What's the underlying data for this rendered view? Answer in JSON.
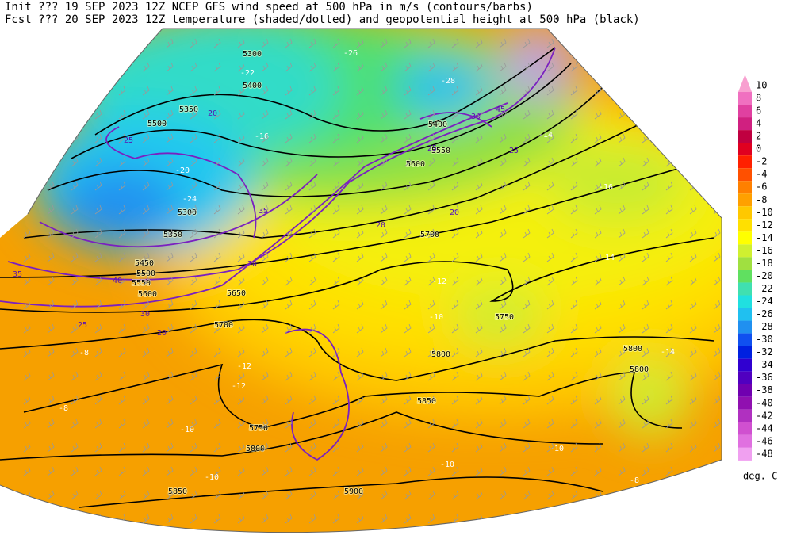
{
  "header": {
    "line1": "Init  ??? 19 SEP 2023 12Z  NCEP GFS wind speed at 500 hPa in m/s (contours/barbs)",
    "line2": "Fcst ??? 20 SEP 2023 12Z  temperature (shaded/dotted) and geopotential height at 500 hPa (black)"
  },
  "colorbar": {
    "labels": [
      "10",
      "8",
      "6",
      "4",
      "2",
      "0",
      "-2",
      "-4",
      "-6",
      "-8",
      "-10",
      "-12",
      "-14",
      "-16",
      "-18",
      "-20",
      "-22",
      "-24",
      "-26",
      "-28",
      "-30",
      "-32",
      "-34",
      "-36",
      "-38",
      "-40",
      "-42",
      "-44",
      "-46",
      "-48"
    ],
    "colors": [
      "#f8a0d0",
      "#f070c0",
      "#e040a0",
      "#d02080",
      "#c00040",
      "#e00020",
      "#ff2000",
      "#ff5000",
      "#ff8000",
      "#ffa000",
      "#ffc800",
      "#ffe000",
      "#ffff00",
      "#d0f030",
      "#a0e040",
      "#60e060",
      "#40e0b0",
      "#20e0e0",
      "#20c0f0",
      "#2090f0",
      "#1050f0",
      "#0020e0",
      "#3000d0",
      "#5000c0",
      "#7000b0",
      "#9010b0",
      "#b030c0",
      "#d050d0",
      "#e070e0",
      "#f0a0f0"
    ],
    "unit": "deg. C"
  },
  "map_labels": [
    {
      "text": "5300",
      "kind": "height"
    },
    {
      "text": "5400",
      "kind": "height"
    },
    {
      "text": "5350",
      "kind": "height"
    },
    {
      "text": "5500",
      "kind": "height"
    },
    {
      "text": "5300",
      "kind": "height"
    },
    {
      "text": "5350",
      "kind": "height"
    },
    {
      "text": "5450",
      "kind": "height"
    },
    {
      "text": "5500",
      "kind": "height"
    },
    {
      "text": "5550",
      "kind": "height"
    },
    {
      "text": "5600",
      "kind": "height"
    },
    {
      "text": "5650",
      "kind": "height"
    },
    {
      "text": "5700",
      "kind": "height"
    },
    {
      "text": "5700",
      "kind": "height"
    },
    {
      "text": "5750",
      "kind": "height"
    },
    {
      "text": "5800",
      "kind": "height"
    },
    {
      "text": "5800",
      "kind": "height"
    },
    {
      "text": "5800",
      "kind": "height"
    },
    {
      "text": "5850",
      "kind": "height"
    },
    {
      "text": "5750",
      "kind": "height"
    },
    {
      "text": "5800",
      "kind": "height"
    },
    {
      "text": "5850",
      "kind": "height"
    },
    {
      "text": "5900",
      "kind": "height"
    },
    {
      "text": "5400",
      "kind": "height"
    },
    {
      "text": "5550",
      "kind": "height"
    },
    {
      "text": "5600",
      "kind": "height"
    },
    {
      "text": "25",
      "kind": "wind"
    },
    {
      "text": "20",
      "kind": "wind"
    },
    {
      "text": "35",
      "kind": "wind"
    },
    {
      "text": "40",
      "kind": "wind"
    },
    {
      "text": "30",
      "kind": "wind"
    },
    {
      "text": "25",
      "kind": "wind"
    },
    {
      "text": "20",
      "kind": "wind"
    },
    {
      "text": "30",
      "kind": "wind"
    },
    {
      "text": "35",
      "kind": "wind"
    },
    {
      "text": "25",
      "kind": "wind"
    },
    {
      "text": "20",
      "kind": "wind"
    },
    {
      "text": "45",
      "kind": "wind"
    },
    {
      "text": "30",
      "kind": "wind"
    },
    {
      "text": "25",
      "kind": "wind"
    },
    {
      "text": "20",
      "kind": "wind"
    },
    {
      "text": "-26",
      "kind": "temp"
    },
    {
      "text": "-28",
      "kind": "temp"
    },
    {
      "text": "-22",
      "kind": "temp"
    },
    {
      "text": "-16",
      "kind": "temp"
    },
    {
      "text": "-20",
      "kind": "temp"
    },
    {
      "text": "-24",
      "kind": "temp"
    },
    {
      "text": "-14",
      "kind": "temp"
    },
    {
      "text": "-16",
      "kind": "temp"
    },
    {
      "text": "-12",
      "kind": "temp"
    },
    {
      "text": "-14",
      "kind": "temp"
    },
    {
      "text": "-12",
      "kind": "temp"
    },
    {
      "text": "-10",
      "kind": "temp"
    },
    {
      "text": "-8",
      "kind": "temp"
    },
    {
      "text": "-12",
      "kind": "temp"
    },
    {
      "text": "-10",
      "kind": "temp"
    },
    {
      "text": "-8",
      "kind": "temp"
    },
    {
      "text": "-10",
      "kind": "temp"
    },
    {
      "text": "-10",
      "kind": "temp"
    },
    {
      "text": "-8",
      "kind": "temp"
    },
    {
      "text": "-14",
      "kind": "temp"
    },
    {
      "text": "-10",
      "kind": "temp"
    }
  ]
}
